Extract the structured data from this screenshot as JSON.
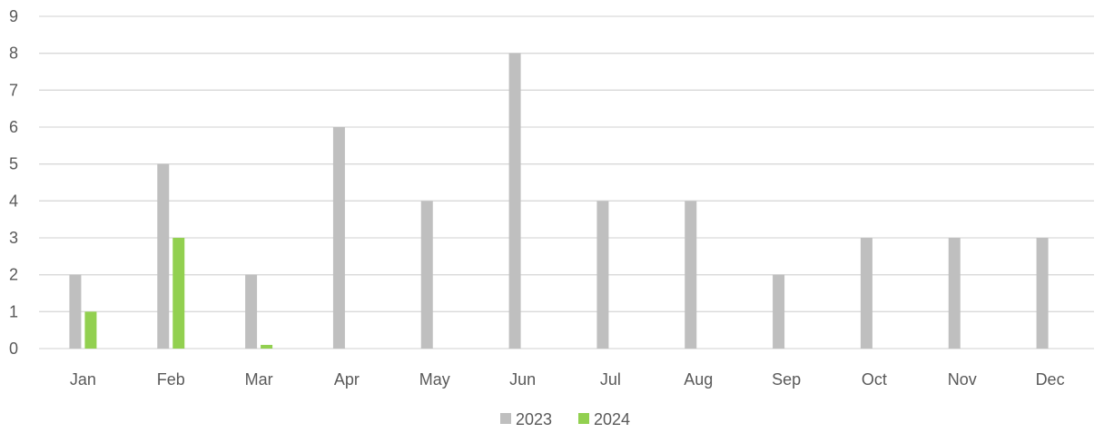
{
  "chart_data": {
    "type": "bar",
    "title": "",
    "xlabel": "",
    "ylabel": "",
    "categories": [
      "Jan",
      "Feb",
      "Mar",
      "Apr",
      "May",
      "Jun",
      "Jul",
      "Aug",
      "Sep",
      "Oct",
      "Nov",
      "Dec"
    ],
    "series": [
      {
        "name": "2023",
        "color": "#bfbfbf",
        "values": [
          2,
          5,
          2,
          6,
          4,
          8,
          4,
          4,
          2,
          3,
          3,
          3
        ]
      },
      {
        "name": "2024",
        "color": "#92d050",
        "values": [
          1,
          3,
          0.1,
          0,
          0,
          0,
          0,
          0,
          0,
          0,
          0,
          0
        ]
      }
    ],
    "ylim": [
      0,
      9
    ],
    "yticks": [
      0,
      1,
      2,
      3,
      4,
      5,
      6,
      7,
      8,
      9
    ],
    "grid": true,
    "legend_position": "bottom"
  }
}
